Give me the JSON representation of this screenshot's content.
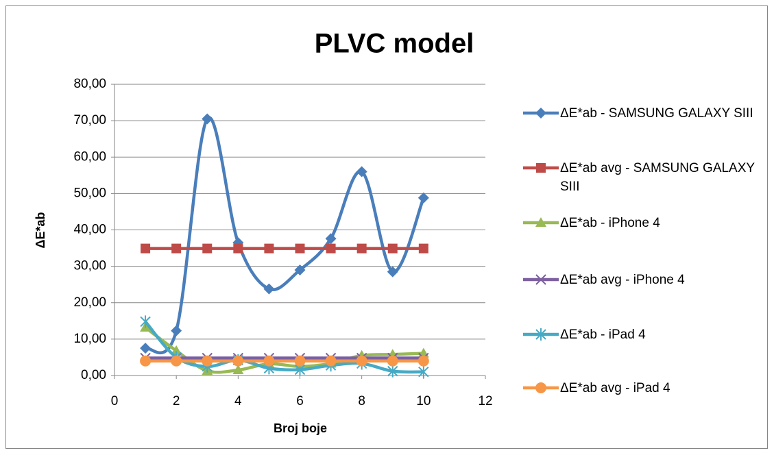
{
  "chart_data": {
    "type": "scatter-smooth",
    "title": "PLVC model",
    "x_label": "Broj boje",
    "y_label": "ΔE*ab",
    "x": [
      1,
      2,
      3,
      4,
      5,
      6,
      7,
      8,
      9,
      10
    ],
    "series": [
      {
        "name": "ΔE*ab - SAMSUNG GALAXY SIII",
        "color": "#4a7ebb",
        "marker": "diamond",
        "values": [
          7.5,
          12.3,
          70.5,
          36.5,
          23.8,
          29.0,
          37.6,
          56.0,
          28.5,
          48.8
        ]
      },
      {
        "name": "ΔE*ab avg  - SAMSUNG GALAXY SIII",
        "color": "#be4b48",
        "marker": "square",
        "values": [
          34.9,
          34.9,
          34.9,
          34.9,
          34.9,
          34.9,
          34.9,
          34.9,
          34.9,
          34.9
        ]
      },
      {
        "name": "ΔE*ab - iPhone 4",
        "color": "#98b954",
        "marker": "triangle",
        "values": [
          13.2,
          6.8,
          1.3,
          1.5,
          3.2,
          2.5,
          3.3,
          5.5,
          5.8,
          6.1
        ]
      },
      {
        "name": "ΔE*ab avg  - iPhone 4",
        "color": "#7d60a0",
        "marker": "x",
        "values": [
          4.8,
          4.8,
          4.8,
          4.8,
          4.8,
          4.8,
          4.8,
          4.8,
          4.8,
          4.8
        ]
      },
      {
        "name": "ΔE*ab - iPad 4",
        "color": "#46aac5",
        "marker": "star",
        "values": [
          14.8,
          5.0,
          2.5,
          4.2,
          2.0,
          1.6,
          2.8,
          3.3,
          1.2,
          1.0
        ]
      },
      {
        "name": "ΔE*ab avg  - iPad 4",
        "color": "#f79646",
        "marker": "circle",
        "values": [
          4.0,
          4.0,
          4.0,
          4.0,
          4.0,
          4.0,
          4.0,
          4.0,
          4.0,
          4.0
        ]
      }
    ],
    "xlim": [
      0,
      12
    ],
    "xticks": [
      0,
      2,
      4,
      6,
      8,
      10,
      12
    ],
    "ylim": [
      0,
      80
    ],
    "yticks": [
      {
        "value": 0,
        "label": "0,00"
      },
      {
        "value": 10,
        "label": "10,00"
      },
      {
        "value": 20,
        "label": "20,00"
      },
      {
        "value": 30,
        "label": "30,00"
      },
      {
        "value": 40,
        "label": "40,00"
      },
      {
        "value": 50,
        "label": "50,00"
      },
      {
        "value": 60,
        "label": "60,00"
      },
      {
        "value": 70,
        "label": "70,00"
      },
      {
        "value": 80,
        "label": "80,00"
      }
    ],
    "grid": true,
    "legend": "right"
  }
}
